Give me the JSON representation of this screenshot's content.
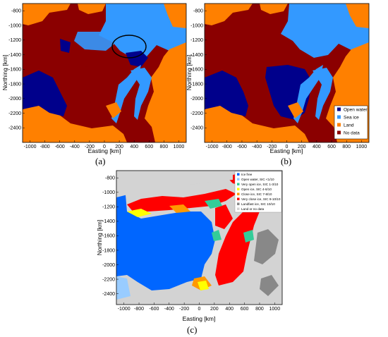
{
  "chart_data": [
    {
      "type": "heatmap",
      "panel_label": "(a)",
      "xlabel": "Easting [km]",
      "ylabel": "Northing [km]",
      "xlim": [
        -1100,
        1100
      ],
      "ylim": [
        -2600,
        -700
      ],
      "x_ticks": [
        "-1000",
        "-800",
        "-600",
        "-400",
        "-200",
        "0",
        "200",
        "400",
        "600",
        "800",
        "1000"
      ],
      "y_ticks": [
        "-800",
        "-1000",
        "-1200",
        "-1400",
        "-1600",
        "-1800",
        "-2000",
        "-2200",
        "-2400"
      ],
      "classes": [
        "Open water",
        "Sea ice",
        "Land",
        "No data"
      ],
      "annotation": "ellipse highlighting region near easting 300 km, northing -1300 km"
    },
    {
      "type": "heatmap",
      "panel_label": "(b)",
      "xlabel": "Easting [km]",
      "ylabel": "Northing [km]",
      "xlim": [
        -1100,
        1100
      ],
      "ylim": [
        -2600,
        -700
      ],
      "x_ticks": [
        "-1000",
        "-800",
        "-600",
        "-400",
        "-200",
        "0",
        "200",
        "400",
        "600",
        "800",
        "1000"
      ],
      "y_ticks": [
        "-800",
        "-1000",
        "-1200",
        "-1400",
        "-1600",
        "-1800",
        "-2000",
        "-2200",
        "-2400"
      ],
      "legend": {
        "placement": "bottom-right",
        "entries": [
          {
            "label": "Open water",
            "color": "#00008b"
          },
          {
            "label": "Sea ice",
            "color": "#3399ff"
          },
          {
            "label": "Land",
            "color": "#ff8000"
          },
          {
            "label": "No data",
            "color": "#8b0000"
          }
        ]
      }
    },
    {
      "type": "heatmap",
      "panel_label": "(c)",
      "xlabel": "Easting [km]",
      "ylabel": "Northing [km]",
      "xlim": [
        -1100,
        1100
      ],
      "ylim": [
        -2550,
        -700
      ],
      "x_ticks": [
        "-1000",
        "-800",
        "-600",
        "-400",
        "-200",
        "0",
        "200",
        "400",
        "600",
        "800",
        "1000"
      ],
      "y_ticks": [
        "-800",
        "-1000",
        "-1200",
        "-1400",
        "-1600",
        "-1800",
        "-2000",
        "-2200",
        "-2400"
      ],
      "legend": {
        "placement": "top-right",
        "entries": [
          {
            "label": "Ice free",
            "color": "#0066ff"
          },
          {
            "label": "Open water, SIC <1/10",
            "color": "#99ccff"
          },
          {
            "label": "Very open ice, SIC 1-3/10",
            "color": "#33cc99"
          },
          {
            "label": "Open ice, SIC 4-6/10",
            "color": "#ffff00"
          },
          {
            "label": "Close ice, SIC 7-8/10",
            "color": "#ff9900"
          },
          {
            "label": "Very close ice, SIC 9-10/10",
            "color": "#ff0000"
          },
          {
            "label": "Landfast ice, SIC 10/10",
            "color": "#888888"
          },
          {
            "label": "Land or no data",
            "color": "#d3d3d3"
          }
        ]
      }
    }
  ]
}
